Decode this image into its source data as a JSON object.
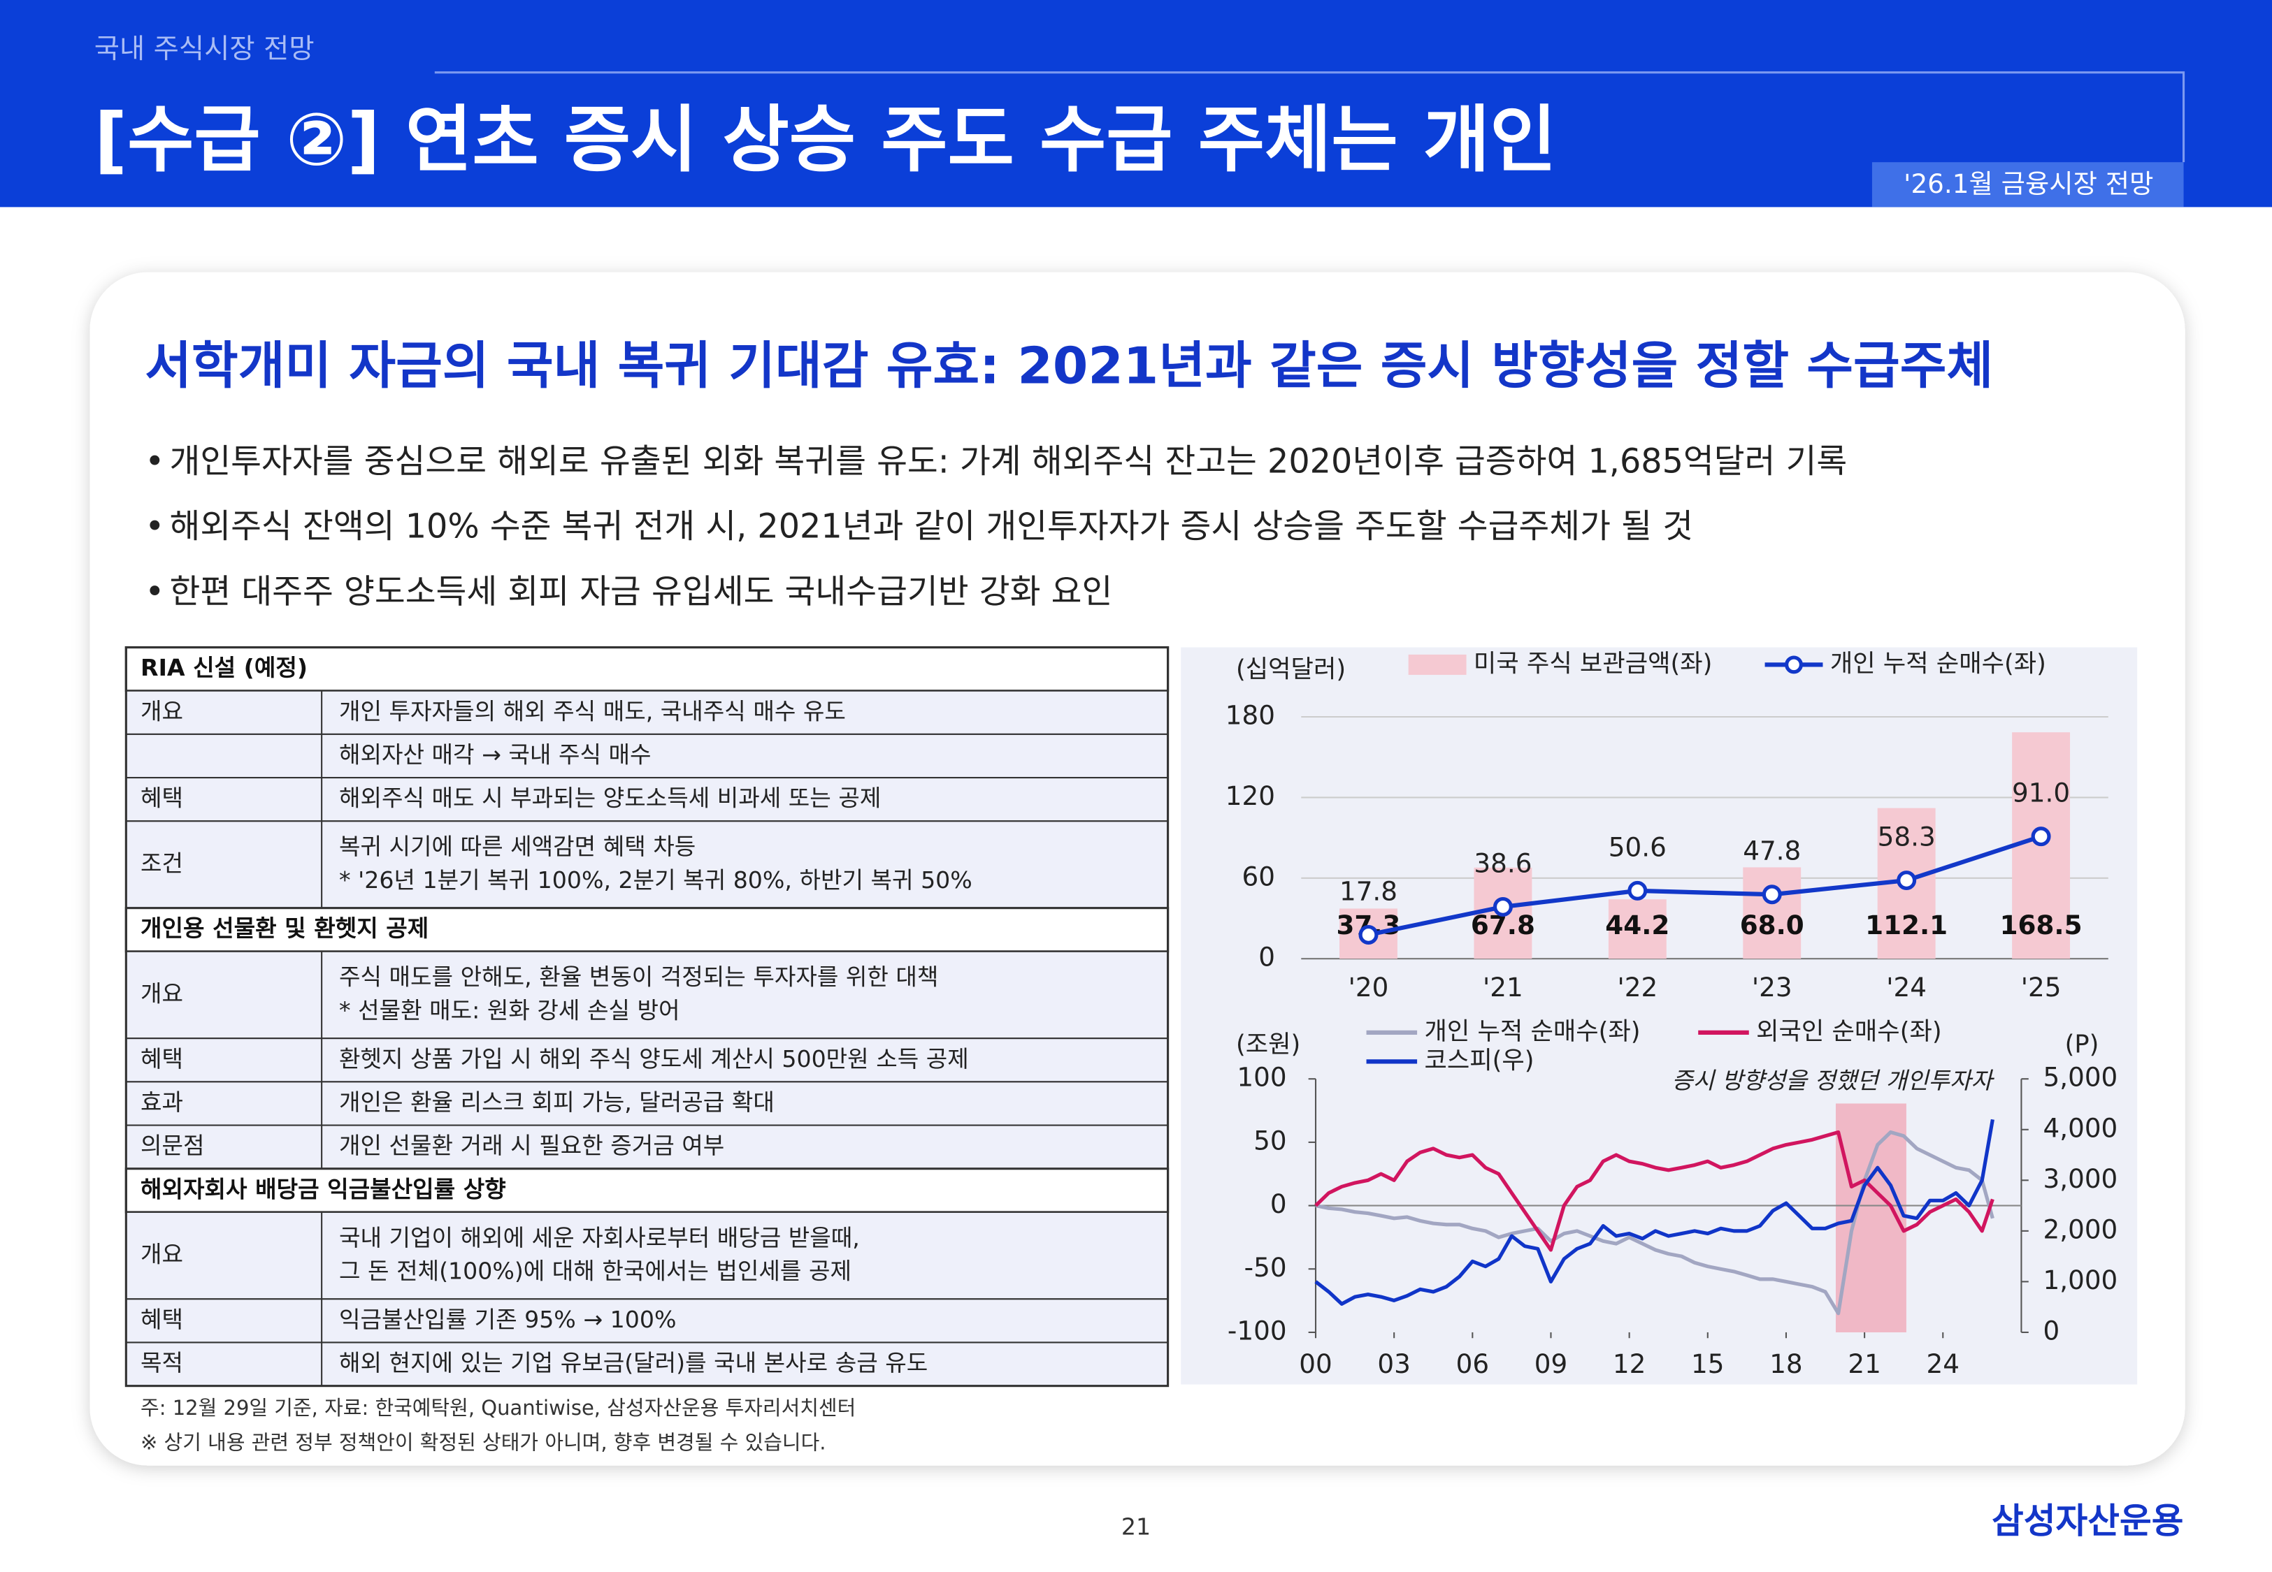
{
  "header": {
    "section": "국내 주식시장 전망",
    "title": "[수급 ②] 연초 증시 상승 주도 수급 주체는 개인",
    "badge": "'26.1월 금융시장 전망"
  },
  "subtitle": "서학개미 자금의 국내 복귀 기대감 유효: 2021년과 같은 증시 방향성을 정할 수급주체",
  "bullets": [
    "개인투자자를 중심으로 해외로 유출된 외화 복귀를 유도: 가계 해외주식 잔고는 2020년이후 급증하여 1,685억달러 기록",
    "해외주식 잔액의 10% 수준 복귀 전개 시, 2021년과 같이 개인투자자가 증시 상승을 주도할 수급주체가 될 것",
    "한편 대주주 양도소득세 회피 자금 유입세도 국내수급기반 강화 요인"
  ],
  "table": {
    "rows": [
      {
        "header": "RIA 신설 (예정)"
      },
      {
        "label": "개요",
        "lines": [
          "개인 투자자들의 해외 주식 매도, 국내주식 매수 유도"
        ]
      },
      {
        "lines": [
          "해외자산 매각 → 국내 주식 매수"
        ]
      },
      {
        "label": "혜택",
        "lines": [
          "해외주식 매도 시 부과되는 양도소득세 비과세 또는 공제"
        ]
      },
      {
        "label": "조건",
        "lines": [
          "복귀 시기에 따른 세액감면 혜택 차등",
          "* '26년 1분기 복귀 100%, 2분기 복귀 80%, 하반기 복귀 50%"
        ]
      },
      {
        "header": "개인용 선물환 및 환헷지 공제"
      },
      {
        "label": "개요",
        "lines": [
          "주식 매도를 안해도, 환율 변동이 걱정되는 투자자를 위한 대책",
          "* 선물환 매도: 원화 강세 손실 방어"
        ]
      },
      {
        "label": "혜택",
        "lines": [
          "환헷지 상품 가입 시 해외 주식 양도세 계산시 500만원 소득 공제"
        ]
      },
      {
        "label": "효과",
        "lines": [
          "개인은 환율 리스크 회피 가능, 달러공급 확대"
        ]
      },
      {
        "label": "의문점",
        "lines": [
          "개인 선물환 거래 시 필요한 증거금 여부"
        ]
      },
      {
        "header": "해외자회사 배당금 익금불산입률 상향"
      },
      {
        "label": "개요",
        "lines": [
          "국내 기업이 해외에 세운 자회사로부터 배당금 받을때,",
          "그 돈 전체(100%)에 대해 한국에서는 법인세를 공제"
        ]
      },
      {
        "label": "혜택",
        "lines": [
          "익금불산입률 기존 95% → 100%"
        ]
      },
      {
        "label": "목적",
        "lines": [
          "해외 현지에 있는 기업 유보금(달러)를 국내 본사로 송금 유도"
        ]
      }
    ]
  },
  "chart_data": [
    {
      "type": "bar",
      "y_label": "(십억달러)",
      "categories": [
        "'20",
        "'21",
        "'22",
        "'23",
        "'24",
        "'25"
      ],
      "series": [
        {
          "name": "미국 주식 보관금액(좌)",
          "type": "bar",
          "color": "#f5c9d2",
          "values": [
            37.3,
            67.8,
            44.2,
            68.0,
            112.1,
            168.5
          ],
          "value_labels": [
            "37.3",
            "67.8",
            "44.2",
            "68.0",
            "112.1",
            "168.5"
          ]
        },
        {
          "name": "개인 누적 순매수(좌)",
          "type": "line",
          "color": "#1238c9",
          "values": [
            17.8,
            38.6,
            50.6,
            47.8,
            58.3,
            91.0
          ],
          "value_labels": [
            "17.8",
            "38.6",
            "50.6",
            "47.8",
            "58.3",
            "91.0"
          ]
        }
      ],
      "ylim": [
        0,
        180
      ],
      "yticks": [
        0,
        60,
        120,
        180
      ],
      "grid": true
    },
    {
      "type": "line",
      "y_label": "(조원)",
      "y2_label": "(P)",
      "annotation": {
        "text": "증시 방향성을 정했던 개인투자자",
        "from": 2019.9,
        "to": 2022.6,
        "color": "#f0b8c6"
      },
      "x": [
        2000,
        2000.5,
        2001,
        2001.5,
        2002,
        2002.5,
        2003,
        2003.5,
        2004,
        2004.5,
        2005,
        2005.5,
        2006,
        2006.5,
        2007,
        2007.5,
        2008,
        2008.5,
        2009,
        2009.5,
        2010,
        2010.5,
        2011,
        2011.5,
        2012,
        2012.5,
        2013,
        2013.5,
        2014,
        2014.5,
        2015,
        2015.5,
        2016,
        2016.5,
        2017,
        2017.5,
        2018,
        2018.5,
        2019,
        2019.5,
        2020,
        2020.5,
        2021,
        2021.5,
        2022,
        2022.5,
        2023,
        2023.5,
        2024,
        2024.5,
        2025,
        2025.5,
        2025.9
      ],
      "series": [
        {
          "name": "개인 누적 순매수(좌)",
          "color": "#a2a6c2",
          "values": [
            0,
            -2,
            -3,
            -5,
            -6,
            -8,
            -10,
            -9,
            -12,
            -14,
            -15,
            -15,
            -18,
            -20,
            -25,
            -22,
            -20,
            -18,
            -28,
            -22,
            -20,
            -24,
            -28,
            -30,
            -25,
            -30,
            -35,
            -38,
            -40,
            -45,
            -48,
            -50,
            -52,
            -55,
            -58,
            -58,
            -60,
            -62,
            -64,
            -68,
            -85,
            -20,
            20,
            48,
            58,
            55,
            45,
            40,
            35,
            30,
            28,
            20,
            -10
          ]
        },
        {
          "name": "외국인 순매수(좌)",
          "color": "#d1155f",
          "values": [
            0,
            10,
            15,
            18,
            20,
            25,
            20,
            35,
            42,
            45,
            40,
            38,
            40,
            30,
            25,
            10,
            -5,
            -20,
            -35,
            0,
            15,
            20,
            35,
            40,
            35,
            33,
            30,
            28,
            30,
            32,
            35,
            30,
            32,
            35,
            40,
            45,
            48,
            50,
            52,
            55,
            58,
            15,
            20,
            10,
            0,
            -20,
            -15,
            -5,
            0,
            5,
            -5,
            -20,
            5
          ]
        },
        {
          "name": "코스피(우)",
          "color": "#1035c8",
          "axis": "y2",
          "values": [
            1000,
            800,
            560,
            700,
            750,
            700,
            630,
            720,
            850,
            800,
            900,
            1100,
            1400,
            1300,
            1450,
            1900,
            1700,
            1650,
            1000,
            1450,
            1650,
            1750,
            2100,
            1900,
            1950,
            1850,
            2000,
            1900,
            1950,
            2000,
            1950,
            2050,
            2000,
            2000,
            2100,
            2400,
            2550,
            2300,
            2050,
            2050,
            2150,
            2200,
            2900,
            3250,
            2900,
            2300,
            2250,
            2600,
            2600,
            2750,
            2500,
            3000,
            4200
          ]
        }
      ],
      "xlim": [
        2000,
        2027
      ],
      "xticks": [
        {
          "value": 2000,
          "label": "00"
        },
        {
          "value": 2003,
          "label": "03"
        },
        {
          "value": 2006,
          "label": "06"
        },
        {
          "value": 2009,
          "label": "09"
        },
        {
          "value": 2012,
          "label": "12"
        },
        {
          "value": 2015,
          "label": "15"
        },
        {
          "value": 2018,
          "label": "18"
        },
        {
          "value": 2021,
          "label": "21"
        },
        {
          "value": 2024,
          "label": "24"
        }
      ],
      "ylim": [
        -100,
        100
      ],
      "yticks": [
        -100,
        -50,
        0,
        50,
        100
      ],
      "y2lim": [
        0,
        5000
      ],
      "y2ticks": [
        0,
        {
          "value": 1000,
          "label": "1,000"
        },
        {
          "value": 2000,
          "label": "2,000"
        },
        {
          "value": 3000,
          "label": "3,000"
        },
        {
          "value": 4000,
          "label": "4,000"
        },
        {
          "value": 5000,
          "label": "5,000"
        }
      ]
    }
  ],
  "footnotes": [
    "주: 12월 29일 기준,  자료: 한국예탁원, Quantiwise, 삼성자산운용 투자리서치센터",
    "※ 상기 내용 관련 정부 정책안이 확정된 상태가 아니며, 향후 변경될 수 있습니다."
  ],
  "page_number": "21",
  "logo": "삼성자산운용"
}
